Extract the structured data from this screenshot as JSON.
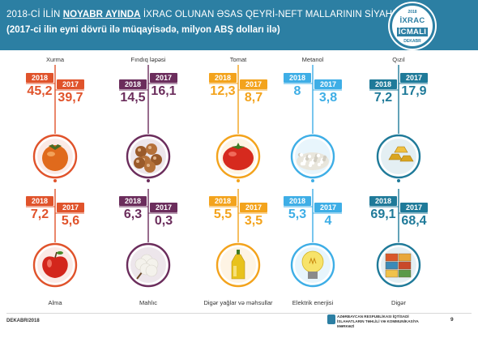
{
  "header": {
    "title_prefix": "2018-Cİ İLİN ",
    "title_highlight": "NOYABR AYINDA",
    "title_suffix": " İXRAC OLUNAN ƏSAS QEYRİ-NEFT MALLARININ SİYAHISI",
    "subtitle": "(2017-ci ilin eyni dövrü ilə müqayisədə, milyon ABŞ dolları ilə)"
  },
  "badge": {
    "year_top": "2018",
    "line1": "İXRAC",
    "line2": "İCMALI",
    "year_bottom": "DEKABR"
  },
  "footer": {
    "date": "DEKABR/2018",
    "org": "AZƏRBAYCAN RESPUBLİKASI İQTİSADİ İSLAHATLARIN TƏHLİLİ VƏ KOMMUNİKASİYA MƏRKƏZİ",
    "page": "9"
  },
  "chart_data": {
    "type": "bar",
    "series": [
      {
        "name": "2018"
      },
      {
        "name": "2017"
      }
    ],
    "items": [
      {
        "name": "Xurma",
        "v2018": 45.2,
        "v2018_label": "45,2",
        "v2017": 39.7,
        "v2017_label": "39,7",
        "color": "#e0532b",
        "icon": "persimmon-icon"
      },
      {
        "name": "Fındıq ləpəsi",
        "v2018": 14.5,
        "v2018_label": "14,5",
        "v2017": 16.1,
        "v2017_label": "16,1",
        "color": "#6b2d5c",
        "icon": "hazelnut-icon"
      },
      {
        "name": "Tomat",
        "v2018": 12.3,
        "v2018_label": "12,3",
        "v2017": 8.7,
        "v2017_label": "8,7",
        "color": "#f3a31c",
        "icon": "tomato-icon"
      },
      {
        "name": "Metanol",
        "v2018": 8,
        "v2018_label": "8",
        "v2017": 3.8,
        "v2017_label": "3,8",
        "color": "#3eaee6",
        "icon": "methanol-icon"
      },
      {
        "name": "Qızıl",
        "v2018": 7.2,
        "v2018_label": "7,2",
        "v2017": 17.9,
        "v2017_label": "17,9",
        "color": "#1f7a99",
        "icon": "gold-icon"
      },
      {
        "name": "Alma",
        "v2018": 7.2,
        "v2018_label": "7,2",
        "v2017": 5.6,
        "v2017_label": "5,6",
        "color": "#e0532b",
        "icon": "apple-icon"
      },
      {
        "name": "Mahlıc",
        "v2018": 6.3,
        "v2018_label": "6,3",
        "v2017": 0.3,
        "v2017_label": "0,3",
        "color": "#6b2d5c",
        "icon": "cotton-icon"
      },
      {
        "name": "Digər yağlar və məhsullar",
        "v2018": 5.5,
        "v2018_label": "5,5",
        "v2017": 3.5,
        "v2017_label": "3,5",
        "color": "#f3a31c",
        "icon": "oil-bottle-icon"
      },
      {
        "name": "Elektrik enerjisi",
        "v2018": 5.3,
        "v2018_label": "5,3",
        "v2017": 4,
        "v2017_label": "4",
        "color": "#3eaee6",
        "icon": "lightbulb-icon"
      },
      {
        "name": "Digər",
        "v2018": 69.1,
        "v2018_label": "69,1",
        "v2017": 68.4,
        "v2017_label": "68,4",
        "color": "#1f7a99",
        "icon": "containers-icon"
      }
    ]
  }
}
